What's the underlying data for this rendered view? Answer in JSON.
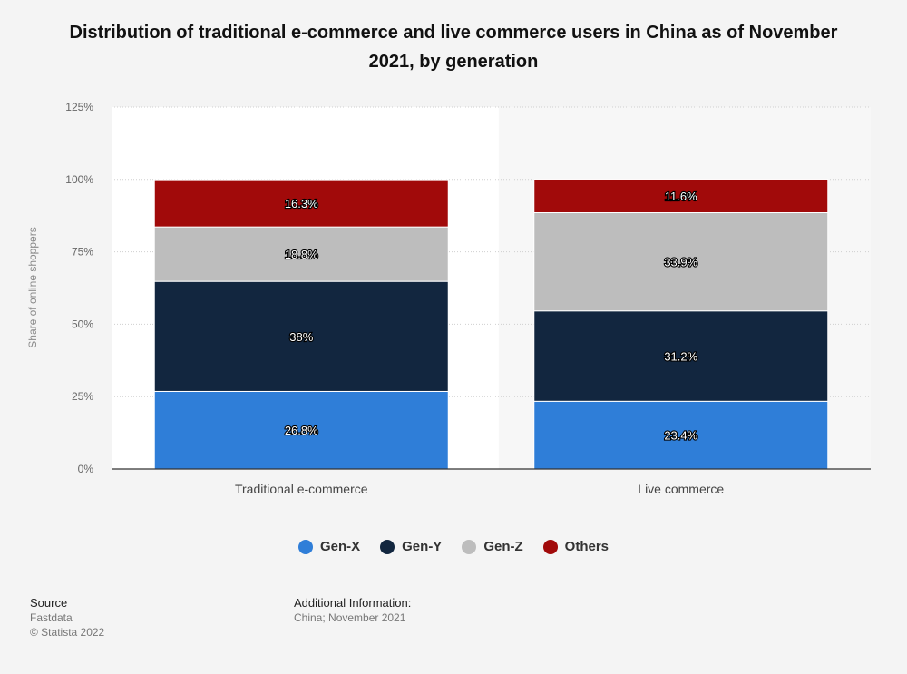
{
  "chart_data": {
    "type": "bar",
    "stacked": true,
    "title": "Distribution of traditional e-commerce and live commerce users in China as of November 2021, by generation",
    "ylabel": "Share of online shoppers",
    "xlabel": "",
    "ylim": [
      0,
      125
    ],
    "yticks": [
      0,
      25,
      50,
      75,
      100,
      125
    ],
    "ytick_labels": [
      "0%",
      "25%",
      "50%",
      "75%",
      "100%",
      "125%"
    ],
    "grid": true,
    "legend_position": "bottom",
    "categories": [
      "Traditional e-commerce",
      "Live commerce"
    ],
    "series": [
      {
        "name": "Gen-X",
        "values": [
          26.8,
          23.4
        ],
        "labels": [
          "26.8%",
          "23.4%"
        ],
        "color": "#2f7ed8"
      },
      {
        "name": "Gen-Y",
        "values": [
          38,
          31.2
        ],
        "labels": [
          "38%",
          "31.2%"
        ],
        "color": "#12263f"
      },
      {
        "name": "Gen-Z",
        "values": [
          18.8,
          33.9
        ],
        "labels": [
          "18.8%",
          "33.9%"
        ],
        "color": "#bdbdbd"
      },
      {
        "name": "Others",
        "values": [
          16.3,
          11.6
        ],
        "labels": [
          "16.3%",
          "11.6%"
        ],
        "color": "#a10a0a"
      }
    ]
  },
  "footer": {
    "source_heading": "Source",
    "source_name": "Fastdata",
    "copyright": "© Statista 2022",
    "additional_heading": "Additional Information:",
    "additional_text": "China; November 2021"
  }
}
